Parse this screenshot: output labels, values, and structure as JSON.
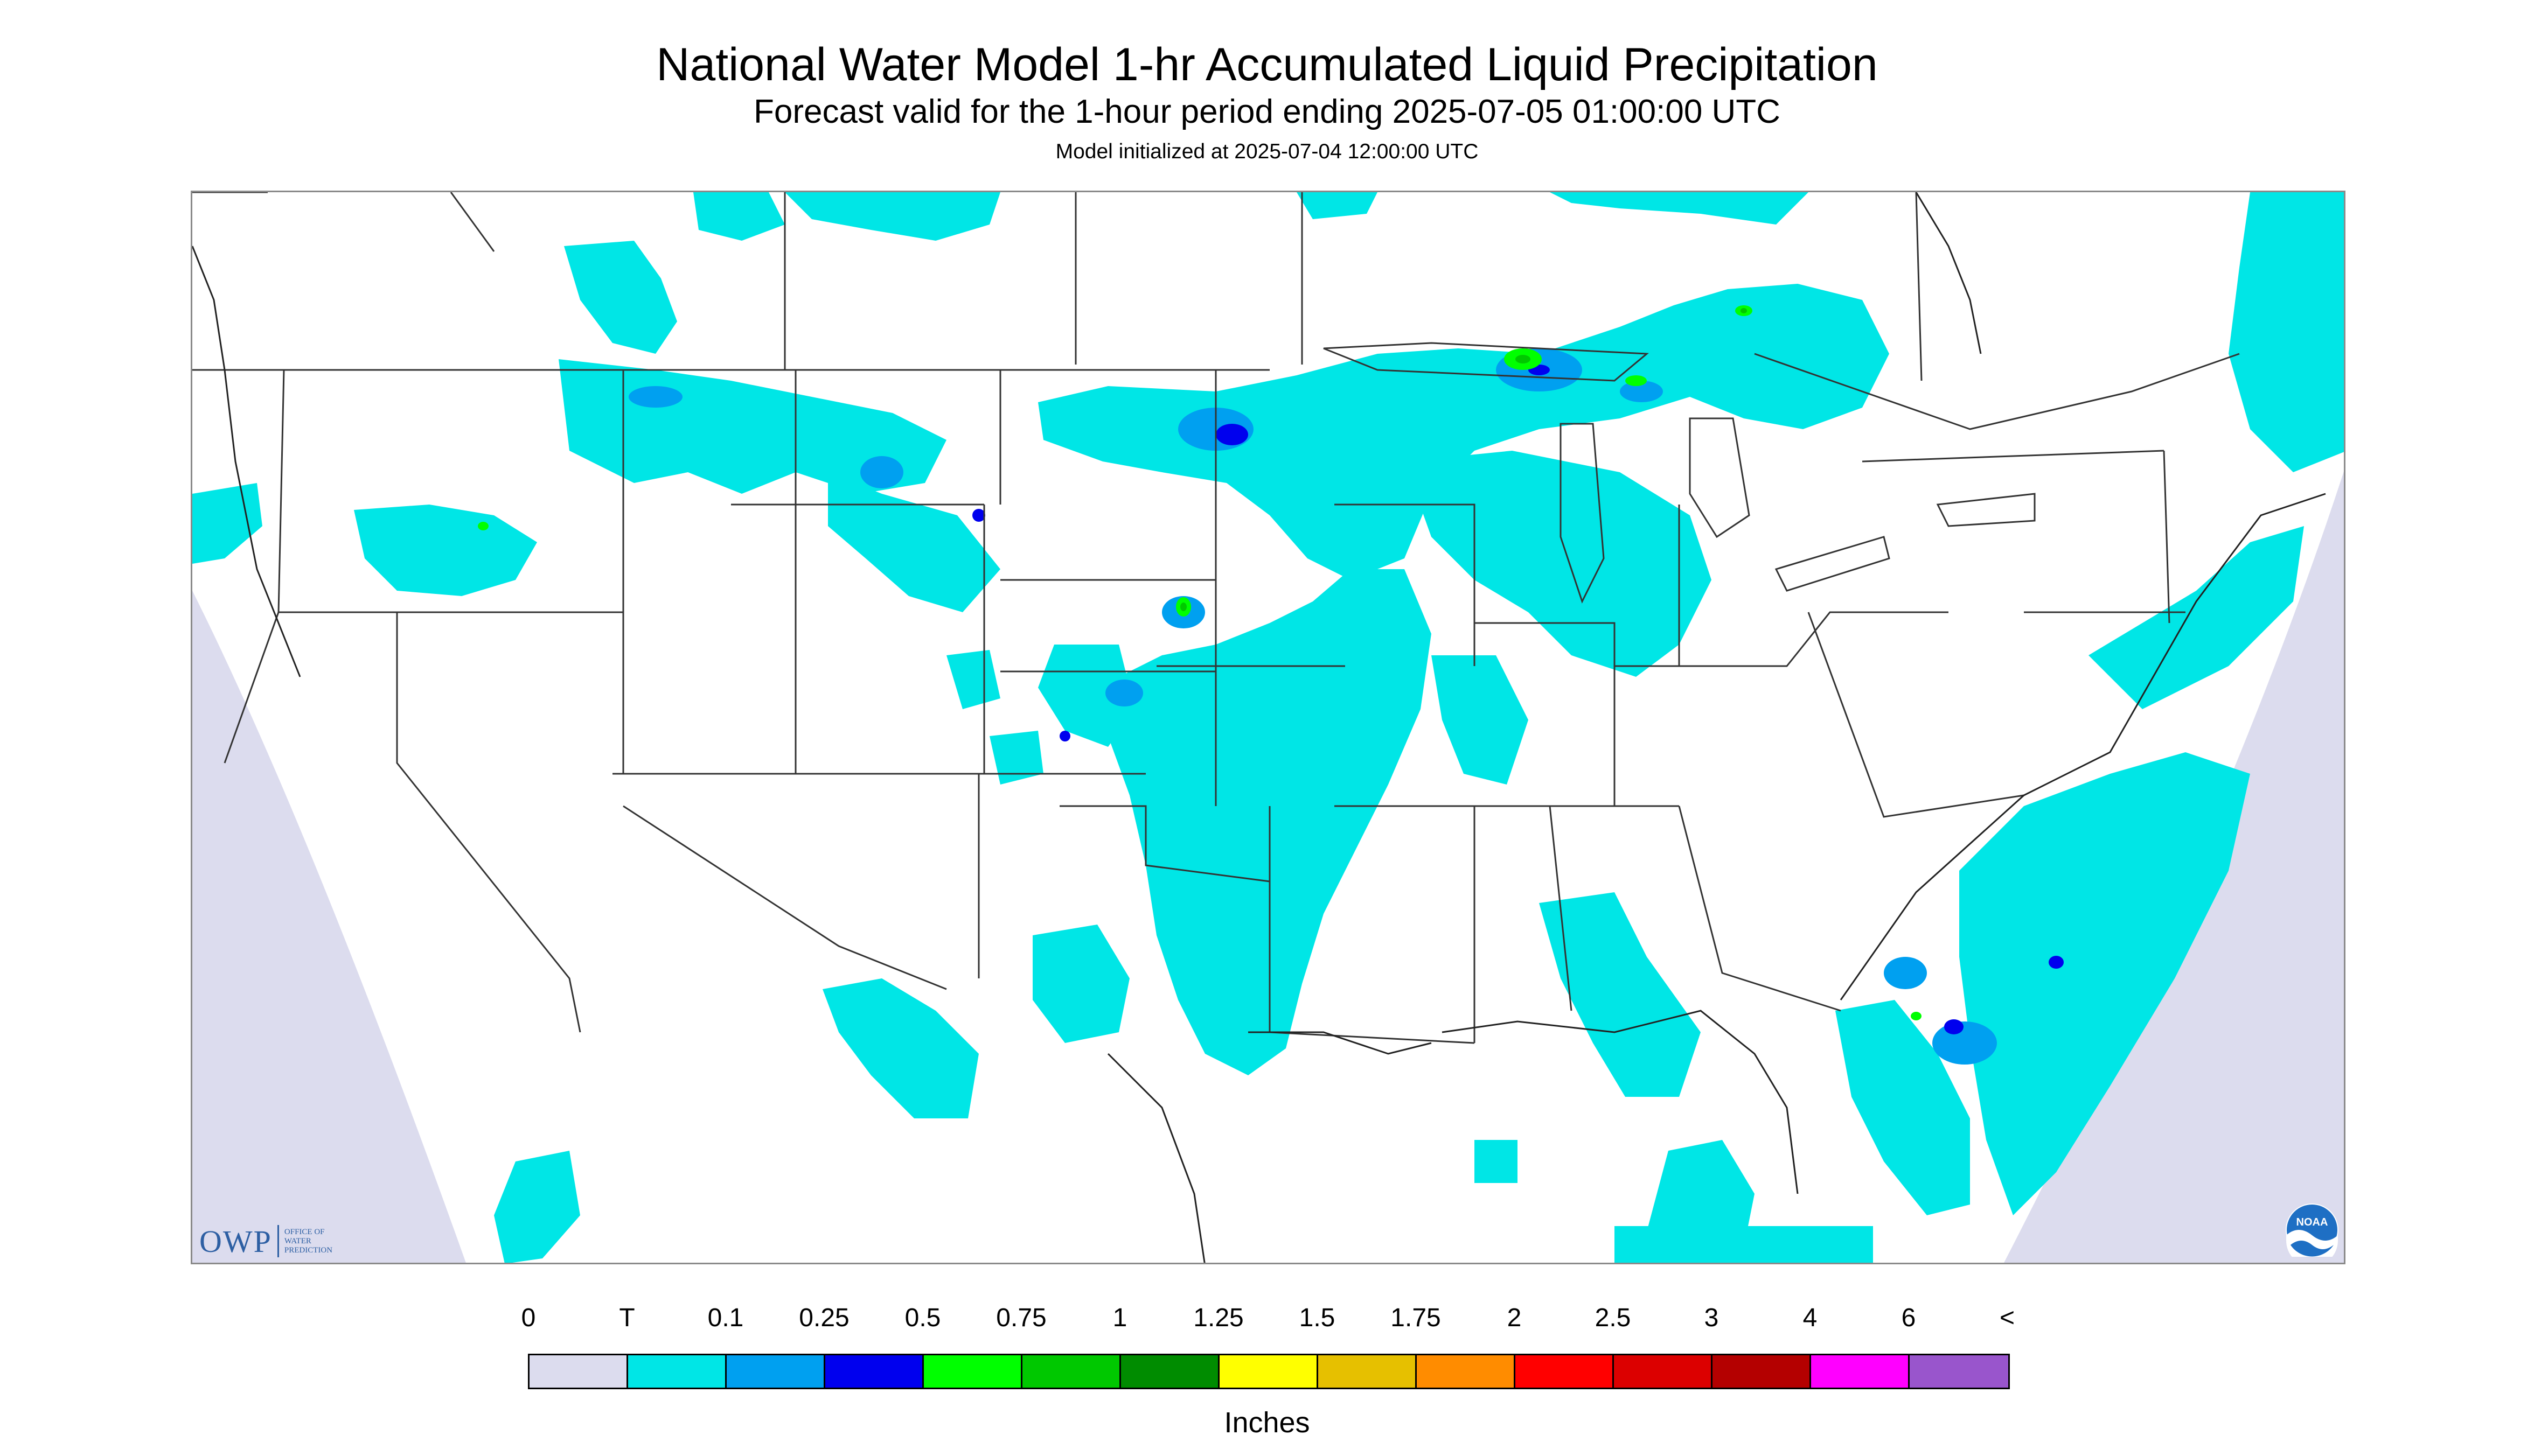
{
  "header": {
    "title": "National Water Model 1-hr Accumulated Liquid Precipitation",
    "subtitle": "Forecast valid for the 1-hour period ending 2025-07-05 01:00:00 UTC",
    "init_line": "Model initialized at 2025-07-04 12:00:00 UTC"
  },
  "colors": {
    "background": "#ffffff",
    "map_outside": "#dcdcee",
    "border_line": "#333333",
    "precip_trace": "#00e6e6",
    "precip_0_1": "#00a0f0",
    "precip_0_25": "#0000ee",
    "precip_0_5": "#00ff00",
    "precip_0_75": "#00c800"
  },
  "logos": {
    "owp_letters": "OWP",
    "owp_words": [
      "OFFICE OF",
      "WATER",
      "PREDICTION"
    ],
    "noaa_text": "NOAA"
  },
  "legend": {
    "labels": [
      "0",
      "T",
      "0.1",
      "0.25",
      "0.5",
      "0.75",
      "1",
      "1.25",
      "1.5",
      "1.75",
      "2",
      "2.5",
      "3",
      "4",
      "6",
      "<"
    ],
    "colors": [
      "#dcdcee",
      "#00e6e6",
      "#00a0f0",
      "#0000ee",
      "#00ff00",
      "#00c800",
      "#008c00",
      "#ffff00",
      "#e6c000",
      "#ff8c00",
      "#ff0000",
      "#dc0000",
      "#b40000",
      "#ff00ff",
      "#9955cc"
    ],
    "units": "Inches"
  }
}
